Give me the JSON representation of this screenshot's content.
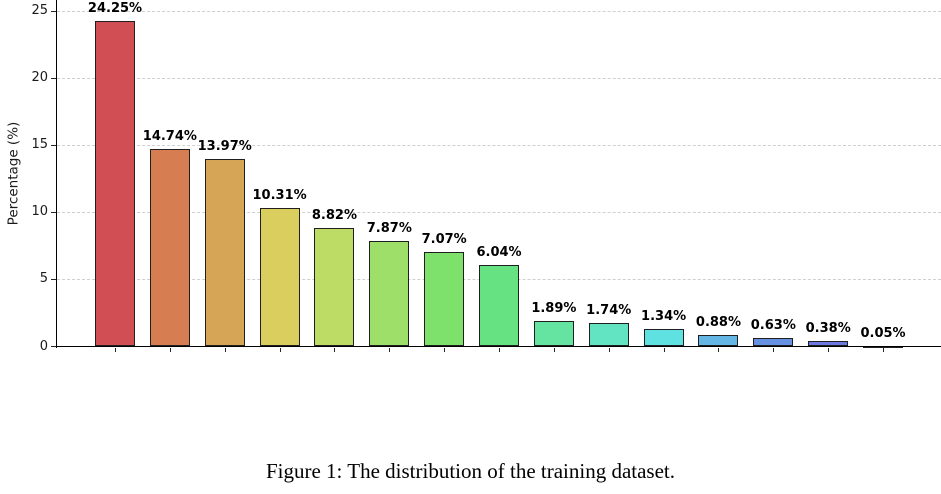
{
  "figure": {
    "caption": "Figure 1: The distribution of the training dataset."
  },
  "chart_data": {
    "type": "bar",
    "title": "",
    "xlabel": "",
    "ylabel": "Percentage (%)",
    "ylim": [
      0,
      25.8
    ],
    "yticks": [
      0,
      5,
      10,
      15,
      20,
      25
    ],
    "yticklabels": [
      "0",
      "5",
      "10",
      "15",
      "20",
      "25"
    ],
    "grid": "horizontal-dashed",
    "legend": "none",
    "values": [
      24.25,
      14.74,
      13.97,
      10.31,
      8.82,
      7.87,
      7.07,
      6.04,
      1.89,
      1.74,
      1.34,
      0.88,
      0.63,
      0.38,
      0.05
    ],
    "bar_labels": [
      "24.25%",
      "14.74%",
      "13.97%",
      "10.31%",
      "8.82%",
      "7.87%",
      "7.07%",
      "6.04%",
      "1.89%",
      "1.74%",
      "1.34%",
      "0.88%",
      "0.63%",
      "0.38%",
      "0.05%"
    ],
    "bar_colors": [
      "#d14f54",
      "#d67d52",
      "#d7a556",
      "#dace5f",
      "#bcdc66",
      "#9edf69",
      "#7ee16c",
      "#66e283",
      "#64e3a1",
      "#62e3c1",
      "#60e1e1",
      "#64b6e4",
      "#6691e3",
      "#6b79e1",
      "#6f5fdd"
    ],
    "bar_edge_color": "#1f1f1f",
    "grid_color": "#cfcfcf"
  }
}
